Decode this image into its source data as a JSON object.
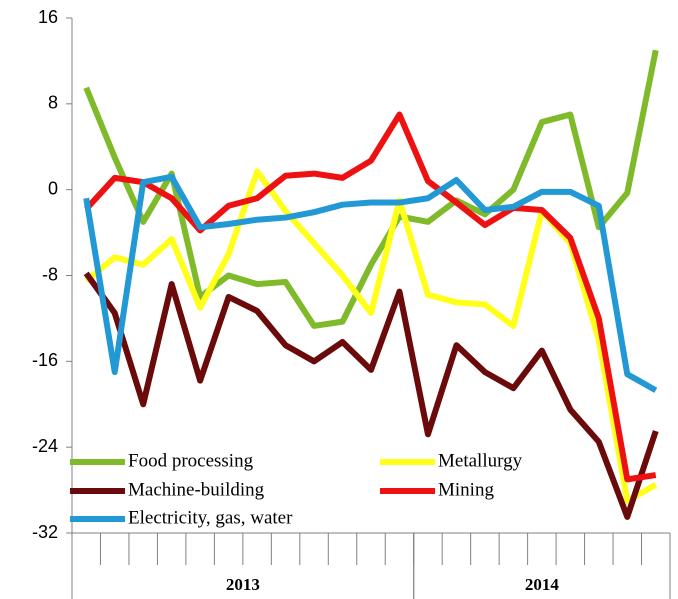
{
  "chart_data": {
    "type": "line",
    "categories": [
      null,
      null,
      null,
      null,
      null,
      null,
      null,
      null,
      null,
      null,
      null,
      null,
      null,
      null,
      null,
      null,
      null,
      null,
      null,
      null,
      null
    ],
    "groups": [
      {
        "label": "2013",
        "count": 12
      },
      {
        "label": "2014",
        "count": 9
      }
    ],
    "series": [
      {
        "name": "Food processing",
        "color": "#7fba2a",
        "values": [
          9.5,
          3,
          -3,
          1.5,
          -10,
          -8,
          -8.8,
          -8.6,
          -12.7,
          -12.3,
          -7,
          -2.5,
          -3,
          -1,
          -2.3,
          0,
          6.3,
          7,
          -3.5,
          -0.3,
          13
        ]
      },
      {
        "name": "Metallurgy",
        "color": "#ffff1a",
        "values": [
          -8.5,
          -6.3,
          -7,
          -4.6,
          -11,
          -6,
          1.7,
          -2,
          -5,
          -8,
          -11.5,
          -1,
          -9.8,
          -10.5,
          -10.7,
          -12.7,
          -2,
          -5,
          -14,
          -29,
          -27.5
        ]
      },
      {
        "name": "Machine-building",
        "color": "#6b0a0a",
        "values": [
          -7.8,
          -11.5,
          -20,
          -8.8,
          -17.8,
          -10,
          -11.3,
          -14.5,
          -16,
          -14.2,
          -16.8,
          -9.5,
          -22.8,
          -14.5,
          -17,
          -18.5,
          -15,
          -20.5,
          -23.5,
          -30.5,
          -22.5
        ]
      },
      {
        "name": "Mining",
        "color": "#ee1111",
        "values": [
          -1.8,
          1.1,
          0.7,
          -0.8,
          -3.8,
          -1.5,
          -0.8,
          1.3,
          1.5,
          1.1,
          2.7,
          7,
          0.8,
          -1.2,
          -3.3,
          -1.7,
          -1.9,
          -4.5,
          -12,
          -27,
          -26.6
        ]
      },
      {
        "name": "Electricity, gas, water",
        "color": "#2298d4",
        "values": [
          -0.8,
          -17,
          0.7,
          1.2,
          -3.5,
          -3.2,
          -2.8,
          -2.6,
          -2.1,
          -1.4,
          -1.2,
          -1.2,
          -0.8,
          0.9,
          -1.9,
          -1.6,
          -0.2,
          -0.2,
          -1.5,
          -17.2,
          -18.7
        ]
      }
    ],
    "ylim": [
      -32,
      16
    ],
    "yticks": [
      -32,
      -24,
      -16,
      -8,
      0,
      8,
      16
    ],
    "legend": "lower left"
  }
}
